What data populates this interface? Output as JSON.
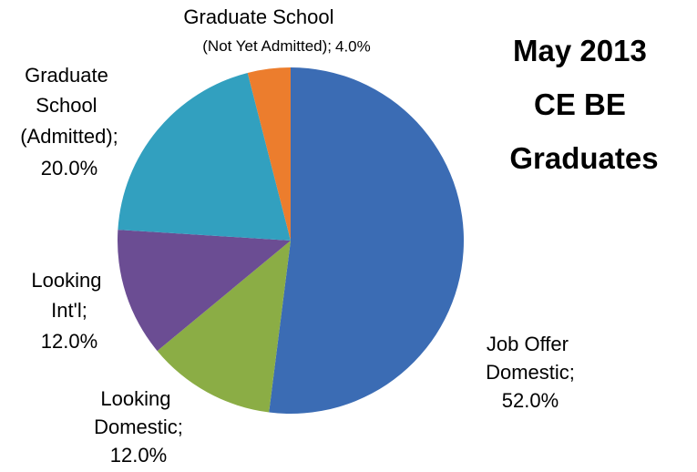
{
  "chart_data": {
    "type": "pie",
    "title": "May 2013 CE BE Graduates",
    "categories": [
      "Job Offer Domestic;",
      "Looking Domestic;",
      "Looking Int'l;",
      "Graduate School (Admitted);",
      "Graduate School (Not Yet Admitted);"
    ],
    "values": [
      52,
      12,
      12,
      20,
      4
    ],
    "value_labels": [
      "52.0%",
      "12.0%",
      "12.0%",
      "20.0%",
      "4.0%"
    ],
    "colors": [
      "#3b6cb4",
      "#8bad45",
      "#6b4d93",
      "#32a0bf",
      "#ec7d2d"
    ]
  }
}
